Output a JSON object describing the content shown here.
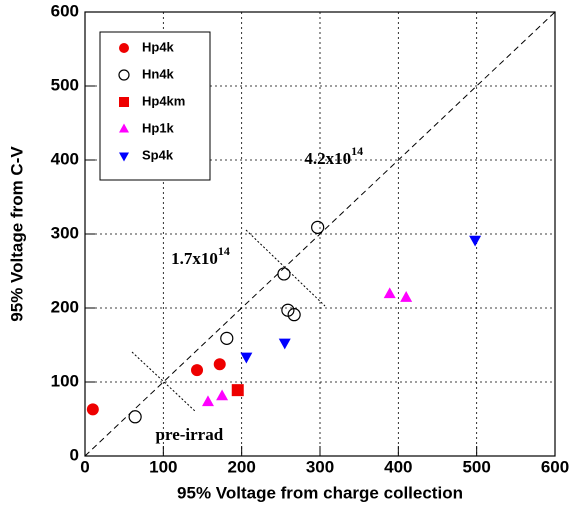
{
  "chart_data": {
    "type": "scatter",
    "x_label": "95% Voltage from charge collection",
    "y_label": "95% Voltage from C-V",
    "xlim": [
      0,
      600
    ],
    "ylim": [
      0,
      600
    ],
    "xticks": [
      0,
      100,
      200,
      300,
      400,
      500,
      600
    ],
    "yticks": [
      0,
      100,
      200,
      300,
      400,
      500,
      600
    ],
    "grid": true,
    "legend": "upper-left",
    "diagonal": true,
    "series": [
      {
        "name": "Hp4k",
        "marker": "circle",
        "filled": true,
        "color": "#ee0000",
        "x": [
          10,
          143,
          172
        ],
        "y": [
          63,
          116,
          124
        ]
      },
      {
        "name": "Hn4k",
        "marker": "circle",
        "filled": false,
        "color": "#000000",
        "x": [
          64,
          181,
          254,
          259,
          267,
          297
        ],
        "y": [
          53,
          159,
          246,
          197,
          191,
          309
        ]
      },
      {
        "name": "Hp4km",
        "marker": "square",
        "filled": true,
        "color": "#ee0000",
        "x": [
          195
        ],
        "y": [
          89
        ]
      },
      {
        "name": "Hp1k",
        "marker": "triangle-up",
        "filled": true,
        "color": "#ff00ff",
        "x": [
          157,
          175,
          389,
          410
        ],
        "y": [
          73,
          81,
          219,
          214
        ]
      },
      {
        "name": "Sp4k",
        "marker": "triangle-down",
        "filled": true,
        "color": "#0000ff",
        "x": [
          206,
          255,
          498
        ],
        "y": [
          134,
          153,
          292
        ]
      }
    ],
    "annotations": [
      {
        "text": "pre-irrad",
        "x": 90,
        "y": 27
      },
      {
        "text": "1.7x10",
        "exponent": "14",
        "x": 110,
        "y": 265
      },
      {
        "text": "4.2x10",
        "exponent": "14",
        "x": 280,
        "y": 400
      }
    ]
  }
}
